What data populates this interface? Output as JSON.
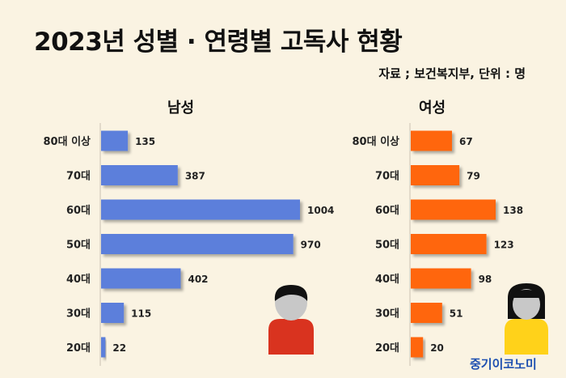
{
  "title": "2023년 성별 · 연령별 고독사 현황",
  "source": "자료 ; 보건복지부, 단위 : 명",
  "brand": "중기이코노미",
  "colors": {
    "male": "#5b7fdb",
    "female": "#ff6610",
    "background": "#faf3e2"
  },
  "icons": {
    "male": "man-avatar-icon",
    "female": "woman-avatar-icon"
  },
  "chart_data": [
    {
      "type": "bar",
      "orientation": "horizontal",
      "title": "남성",
      "categories": [
        "80대 이상",
        "70대",
        "60대",
        "50대",
        "40대",
        "30대",
        "20대"
      ],
      "values": [
        135,
        387,
        1004,
        970,
        402,
        115,
        22
      ],
      "grid": false
    },
    {
      "type": "bar",
      "orientation": "horizontal",
      "title": "여성",
      "categories": [
        "80대 이상",
        "70대",
        "60대",
        "50대",
        "40대",
        "30대",
        "20대"
      ],
      "values": [
        67,
        79,
        138,
        123,
        98,
        51,
        20
      ],
      "grid": false
    }
  ]
}
